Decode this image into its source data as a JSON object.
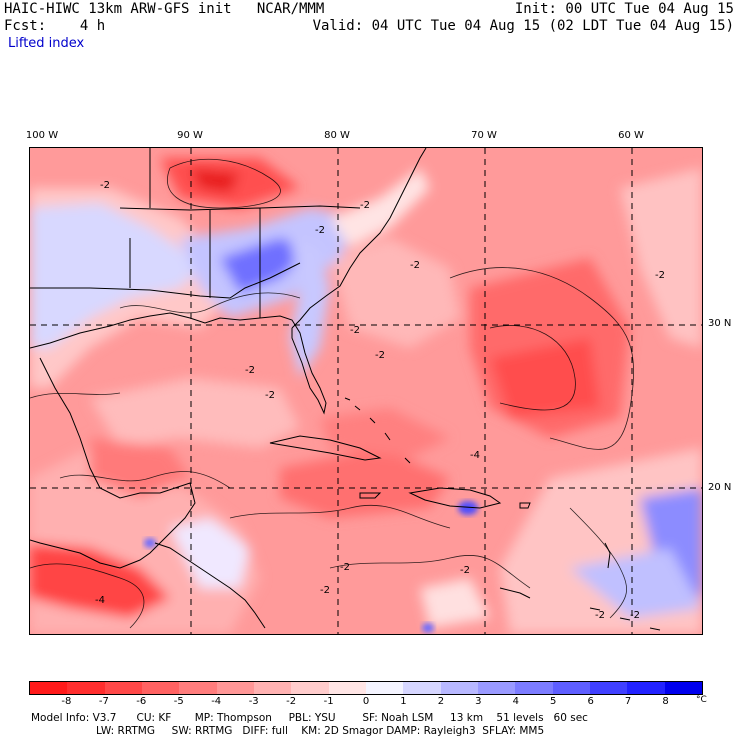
{
  "header": {
    "line1_left": "HAIC-HIWC 13km ARW-GFS init   NCAR/MMM",
    "line2_left": "Fcst:    4 h",
    "line3_left": "Lifted index",
    "line1_right": "Init: 00 UTC Tue 04 Aug 15",
    "line2_right": "Valid: 04 UTC Tue 04 Aug 15 (02 LDT Tue 04 Aug 15)"
  },
  "map": {
    "longitude_labels": [
      "100 W",
      "90 W",
      "80 W",
      "70 W",
      "60 W"
    ],
    "latitude_labels": [
      "30 N",
      "20 N"
    ],
    "contour_labels": [
      "-2",
      "-2",
      "-2",
      "-2",
      "-2",
      "-2",
      "-2",
      "-2",
      "-2",
      "-2",
      "-4",
      "-4",
      "-2",
      "-2",
      "-2",
      "-2"
    ]
  },
  "colorbar": {
    "ticks": [
      "-8",
      "-7",
      "-6",
      "-5",
      "-4",
      "-3",
      "-2",
      "-1",
      "0",
      "1",
      "2",
      "3",
      "4",
      "5",
      "6",
      "7",
      "8"
    ],
    "unit": "°C",
    "colors": [
      "#ff1a1a",
      "#ff2e2e",
      "#ff4848",
      "#ff6262",
      "#ff7d7d",
      "#ff9797",
      "#ffb2b2",
      "#ffcccc",
      "#ffe5e5",
      "#f4f4ff",
      "#d6d6ff",
      "#b8b8ff",
      "#9a9aff",
      "#7c7cff",
      "#5e5eff",
      "#4040ff",
      "#2222ff",
      "#0000ee"
    ]
  },
  "model_info": {
    "line1": "Model Info: V3.7      CU: KF       MP: Thompson     PBL: YSU        SF: Noah LSM     13 km    51 levels   60 sec",
    "line2": "LW: RRTMG     SW: RRTMG   DIFF: full    KM: 2D Smagor DAMP: Rayleigh3  SFLAY: MM5"
  }
}
